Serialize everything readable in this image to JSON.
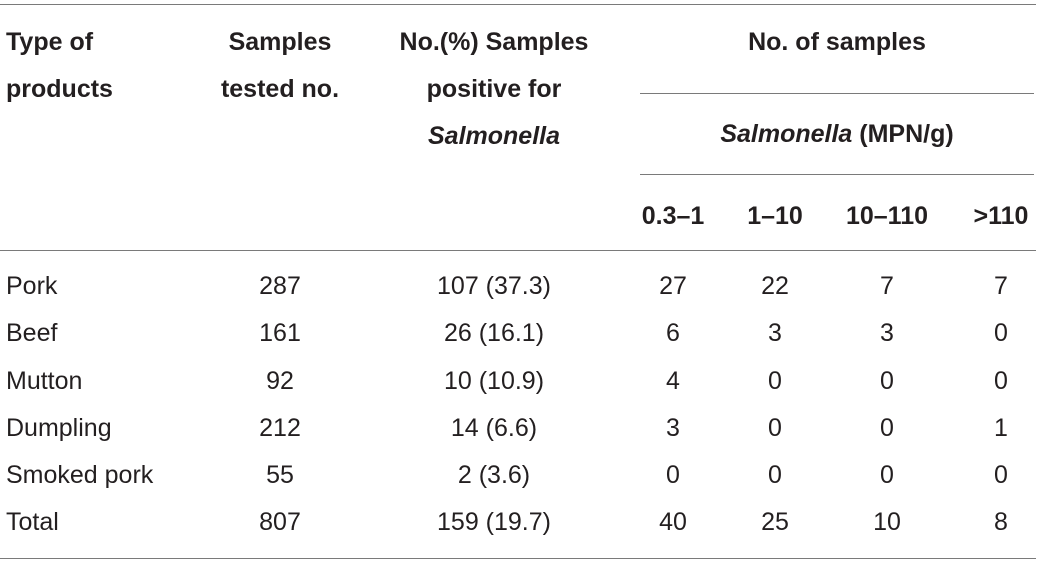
{
  "header": {
    "type_line1": "Type of",
    "type_line2": "products",
    "tested_line1": "Samples",
    "tested_line2": "tested no.",
    "positive_line1": "No.(%) Samples",
    "positive_line2": "positive for",
    "positive_line3": "Salmonella",
    "group_title": "No. of samples",
    "sub_italic": "Salmonella",
    "sub_rest": " (MPN/g)",
    "ranges": [
      "0.3–1",
      "1–10",
      "10–110",
      ">110"
    ]
  },
  "rows": [
    {
      "type": "Pork",
      "tested": "287",
      "positive": "107 (37.3)",
      "r1": "27",
      "r2": "22",
      "r3": "7",
      "r4": "7"
    },
    {
      "type": "Beef",
      "tested": "161",
      "positive": "26 (16.1)",
      "r1": "6",
      "r2": "3",
      "r3": "3",
      "r4": "0"
    },
    {
      "type": "Mutton",
      "tested": "92",
      "positive": "10 (10.9)",
      "r1": "4",
      "r2": "0",
      "r3": "0",
      "r4": "0"
    },
    {
      "type": "Dumpling",
      "tested": "212",
      "positive": "14 (6.6)",
      "r1": "3",
      "r2": "0",
      "r3": "0",
      "r4": "1"
    },
    {
      "type": "Smoked pork",
      "tested": "55",
      "positive": "2 (3.6)",
      "r1": "0",
      "r2": "0",
      "r3": "0",
      "r4": "0"
    },
    {
      "type": "Total",
      "tested": "807",
      "positive": "159 (19.7)",
      "r1": "40",
      "r2": "25",
      "r3": "10",
      "r4": "8"
    }
  ]
}
